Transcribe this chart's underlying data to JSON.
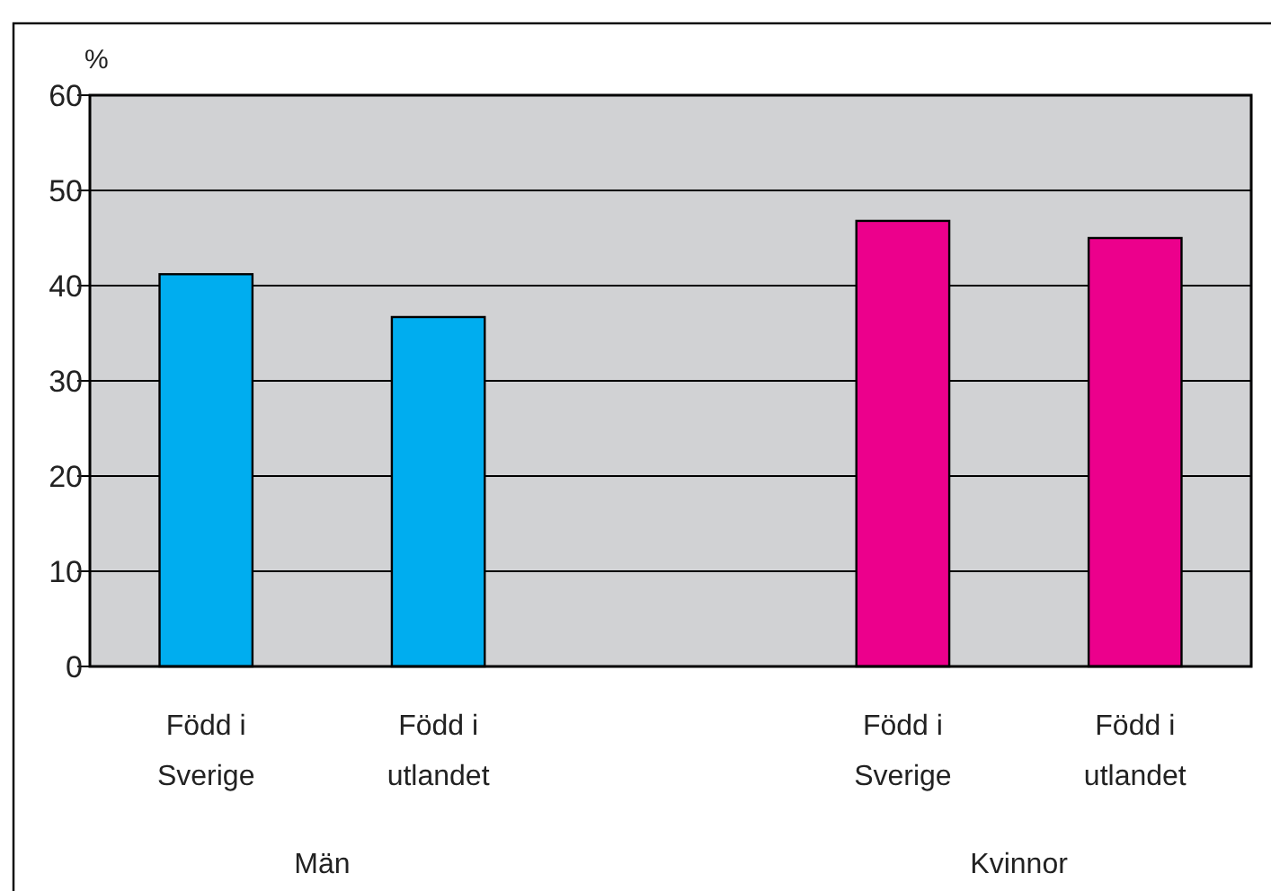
{
  "chart_data": {
    "type": "bar",
    "ylabel": "%",
    "categories": [
      "Född i\nSverige",
      "Född i\nutlandet",
      null,
      "Född i\nSverige",
      "Född i\nutlandet"
    ],
    "values": [
      41.2,
      36.7,
      null,
      46.8,
      45.0
    ],
    "colors": [
      "#00adef",
      "#00adef",
      null,
      "#ec008c",
      "#ec008c"
    ],
    "ylim": [
      0,
      60
    ],
    "yticks": [
      0,
      10,
      20,
      30,
      40,
      50,
      60
    ],
    "grid": "y",
    "annotations": [
      "Män",
      "Kvinnor"
    ]
  }
}
